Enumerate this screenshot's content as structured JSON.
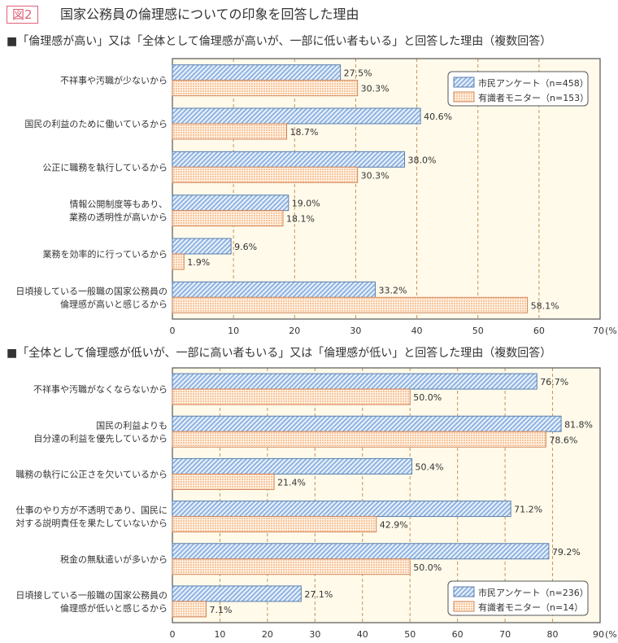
{
  "figure": {
    "label": "図2",
    "title": "国家公務員の倫理感についての印象を回答した理由"
  },
  "colors": {
    "series1_fill": "#c9dcf3",
    "series1_stroke": "#5b7fae",
    "series2_fill": "#fbd9bd",
    "series2_stroke": "#d3875a",
    "plot_bg": "#fffaea",
    "grid": "#c8925a"
  },
  "chart_data": [
    {
      "type": "bar",
      "orientation": "horizontal",
      "title": "■「倫理感が高い」又は「全体として倫理感が高いが、一部に低い者もいる」と回答した理由（複数回答）",
      "categories": [
        "不祥事や汚職が少ないから",
        "国民の利益のために働いているから",
        "公正に職務を執行しているから",
        "情報公開制度等もあり、\n業務の透明性が高いから",
        "業務を効率的に行っているから",
        "日頃接している一般職の国家公務員の\n倫理感が高いと感じるから"
      ],
      "series": [
        {
          "name": "市民アンケート（n=458）",
          "values": [
            27.5,
            40.6,
            38.0,
            19.0,
            9.6,
            33.2
          ]
        },
        {
          "name": "有識者モニター（n=153）",
          "values": [
            30.3,
            18.7,
            30.3,
            18.1,
            1.9,
            58.1
          ]
        }
      ],
      "xlim": [
        0,
        70
      ],
      "ticks": [
        0,
        10,
        20,
        30,
        40,
        50,
        60,
        70
      ],
      "unit": "(%)",
      "grid": true,
      "legend": "top-right"
    },
    {
      "type": "bar",
      "orientation": "horizontal",
      "title": "■「全体として倫理感が低いが、一部に高い者もいる」又は「倫理感が低い」と回答した理由（複数回答）",
      "categories": [
        "不祥事や汚職がなくならないから",
        "国民の利益よりも\n自分達の利益を優先しているから",
        "職務の執行に公正さを欠いているから",
        "仕事のやり方が不透明であり、国民に\n対する説明責任を果たしていないから",
        "税金の無駄遣いが多いから",
        "日頃接している一般職の国家公務員の\n倫理感が低いと感じるから"
      ],
      "series": [
        {
          "name": "市民アンケート（n=236）",
          "values": [
            76.7,
            81.8,
            50.4,
            71.2,
            79.2,
            27.1
          ]
        },
        {
          "name": "有識者モニター（n=14）",
          "values": [
            50.0,
            78.6,
            21.4,
            42.9,
            50.0,
            7.1
          ]
        }
      ],
      "xlim": [
        0,
        90
      ],
      "ticks": [
        0,
        10,
        20,
        30,
        40,
        50,
        60,
        70,
        80,
        90
      ],
      "unit": "(%)",
      "grid": true,
      "legend": "bottom-right"
    }
  ]
}
